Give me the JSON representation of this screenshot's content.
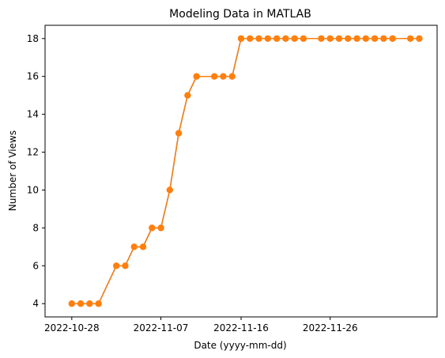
{
  "chart_data": {
    "type": "line",
    "title": "Modeling Data in MATLAB",
    "xlabel": "Date (yyyy-mm-dd)",
    "ylabel": "Number of Views",
    "x_tick_labels": [
      "2022-10-28",
      "2022-11-07",
      "2022-11-16",
      "2022-11-26"
    ],
    "x_ticks": [
      "2022-10-28",
      "2022-11-07",
      "2022-11-16",
      "2022-11-26"
    ],
    "y_ticks": [
      4,
      6,
      8,
      10,
      12,
      14,
      16,
      18
    ],
    "xlim": [
      "2022-10-25",
      "2022-12-08"
    ],
    "ylim": [
      3.3,
      18.7
    ],
    "grid": false,
    "colors": {
      "series": "#ff7f0e",
      "series_under": "#1f77b4"
    },
    "series": [
      {
        "x": [
          "2022-10-28",
          "2022-10-29",
          "2022-10-30",
          "2022-10-31",
          "2022-11-02",
          "2022-11-03",
          "2022-11-04",
          "2022-11-05",
          "2022-11-06",
          "2022-11-07",
          "2022-11-08",
          "2022-11-09",
          "2022-11-10",
          "2022-11-11",
          "2022-11-13",
          "2022-11-14",
          "2022-11-15",
          "2022-11-16",
          "2022-11-17",
          "2022-11-18",
          "2022-11-19",
          "2022-11-20",
          "2022-11-21",
          "2022-11-22",
          "2022-11-23",
          "2022-11-25",
          "2022-11-26",
          "2022-11-27",
          "2022-11-28",
          "2022-11-29",
          "2022-11-30",
          "2022-12-01",
          "2022-12-02",
          "2022-12-03",
          "2022-12-05",
          "2022-12-06"
        ],
        "values": [
          4,
          4,
          4,
          4,
          6,
          6,
          7,
          7,
          8,
          8,
          10,
          13,
          15,
          16,
          16,
          16,
          16,
          18,
          18,
          18,
          18,
          18,
          18,
          18,
          18,
          18,
          18,
          18,
          18,
          18,
          18,
          18,
          18,
          18,
          18,
          18
        ]
      }
    ]
  }
}
